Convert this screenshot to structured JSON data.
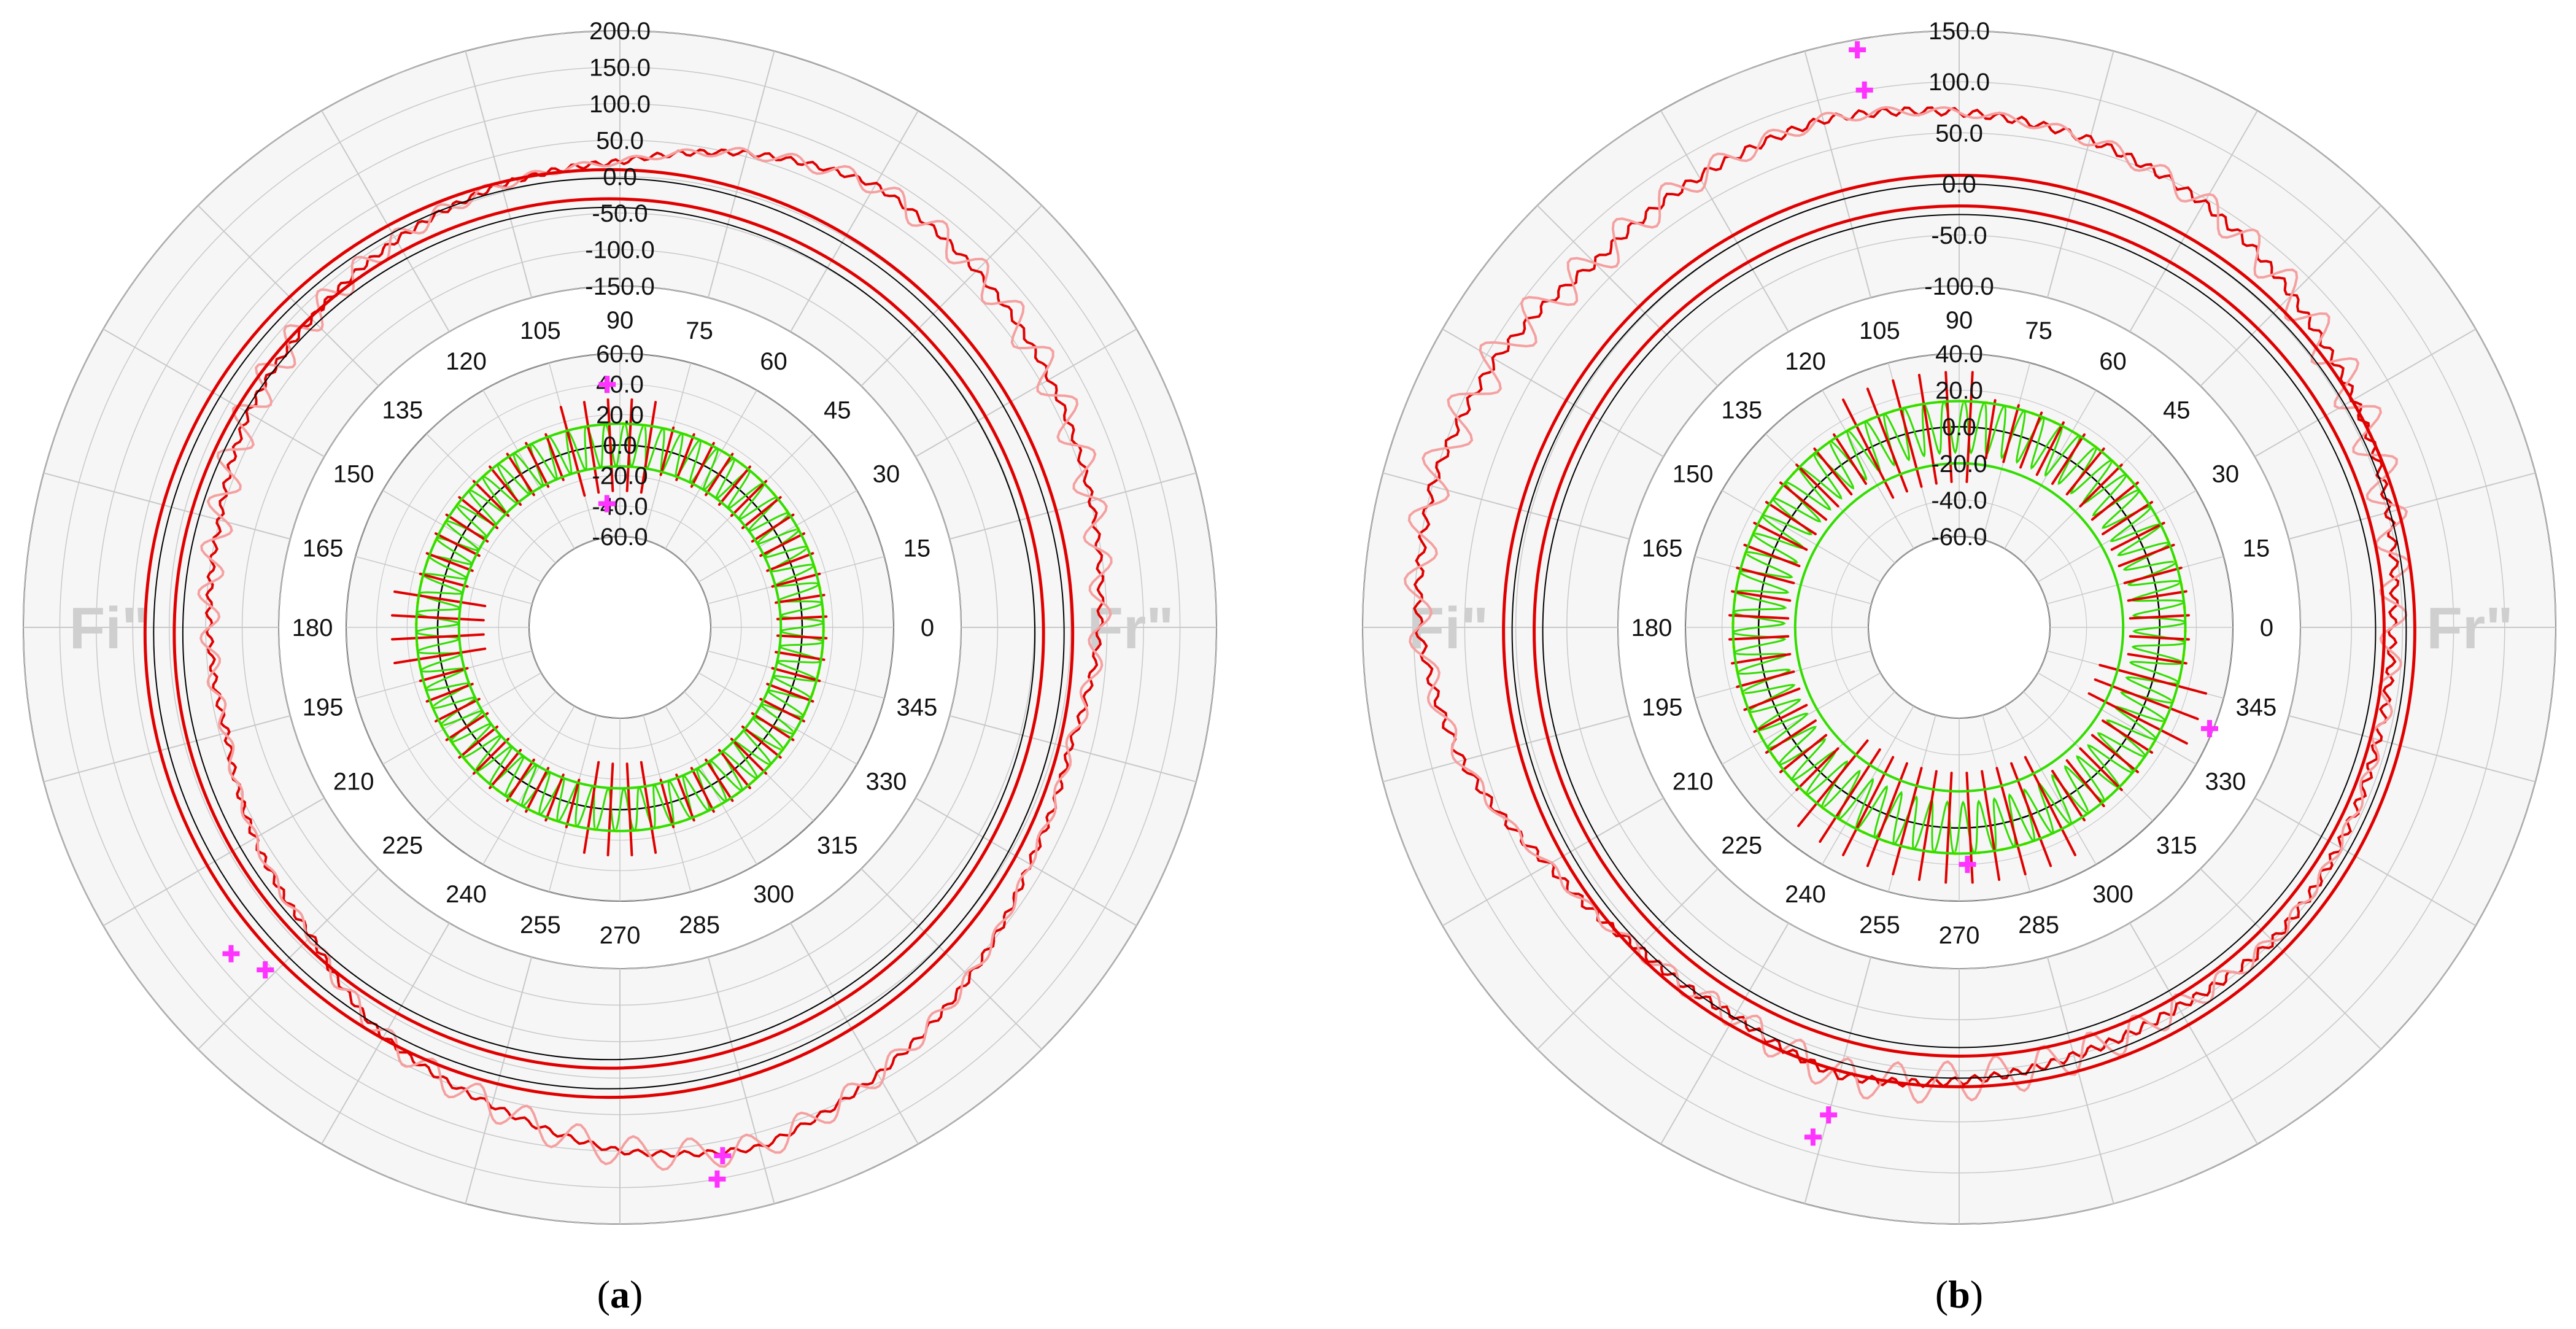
{
  "colors": {
    "grid": "#c8c8c8",
    "black": "#000000",
    "red": "#e00000",
    "pink": "#f5a0a0",
    "green": "#33dd00",
    "yellow": "#ffff00",
    "magenta": "#ff33ff",
    "side_label": "#cfcfcf",
    "outer_fill": "#f6f6f6"
  },
  "chart_data": [
    {
      "type": "polar-line",
      "caption_open": "(",
      "caption_letter": "a",
      "caption_close": ")",
      "side_left": "Fi\"",
      "side_right": "Fr\"",
      "angle_labels": [
        "0",
        "15",
        "30",
        "45",
        "60",
        "75",
        "90",
        "105",
        "120",
        "135",
        "150",
        "165",
        "180",
        "195",
        "210",
        "225",
        "240",
        "255",
        "270",
        "285",
        "300",
        "315",
        "330",
        "345"
      ],
      "outer_radial_labels": [
        "200.0",
        "150.0",
        "100.0",
        "50.0",
        "0.0",
        "-50.0",
        "-100.0",
        "-150.0"
      ],
      "outer_range": [
        -150,
        200
      ],
      "inner_radial_labels": [
        "60.0",
        "40.0",
        "20.0",
        "0.0",
        "-20.0",
        "-40.0",
        "-60.0"
      ],
      "inner_range": [
        -60,
        60
      ],
      "series": [
        {
          "name": "outer deviation trace",
          "ring": "outer",
          "style": "red",
          "points": [
            [
              0,
              40
            ],
            [
              20,
              55
            ],
            [
              40,
              70
            ],
            [
              60,
              82
            ],
            [
              75,
              55
            ],
            [
              90,
              20
            ],
            [
              105,
              10
            ],
            [
              120,
              -5
            ],
            [
              135,
              -20
            ],
            [
              150,
              -30
            ],
            [
              165,
              -50
            ],
            [
              180,
              -55
            ],
            [
              195,
              -60
            ],
            [
              210,
              -40
            ],
            [
              225,
              -20
            ],
            [
              240,
              30
            ],
            [
              255,
              60
            ],
            [
              270,
              100
            ],
            [
              285,
              120
            ],
            [
              300,
              90
            ],
            [
              315,
              60
            ],
            [
              330,
              30
            ],
            [
              345,
              20
            ]
          ]
        },
        {
          "name": "outer filtered trace",
          "ring": "outer",
          "style": "pink",
          "amplitude": 22,
          "waves": 58
        },
        {
          "name": "outer tolerance band upper",
          "ring": "outer",
          "style": "redband",
          "value": 18
        },
        {
          "name": "outer tolerance band lower",
          "ring": "outer",
          "style": "redband",
          "value": -22
        },
        {
          "name": "inner pitch deviation",
          "ring": "inner",
          "style": "green",
          "amplitude": 14,
          "waves": 66
        },
        {
          "name": "inner tolerance upper",
          "ring": "inner",
          "style": "greenband",
          "value": 14
        },
        {
          "name": "inner tolerance lower",
          "ring": "inner",
          "style": "greenband",
          "value": -14
        }
      ],
      "markers": [
        {
          "angle": 93,
          "ring": "inner",
          "value": 40
        },
        {
          "angle": 96,
          "ring": "inner",
          "value": -38
        },
        {
          "angle": 220,
          "ring": "outer",
          "value": 78
        },
        {
          "angle": 224,
          "ring": "outer",
          "value": 58
        },
        {
          "angle": 281,
          "ring": "outer",
          "value": 120
        },
        {
          "angle": 280,
          "ring": "outer",
          "value": 150
        }
      ]
    },
    {
      "type": "polar-line",
      "caption_open": "(",
      "caption_letter": "b",
      "caption_close": ")",
      "side_left": "Fi\"",
      "side_right": "Fr\"",
      "angle_labels": [
        "0",
        "15",
        "30",
        "45",
        "60",
        "75",
        "90",
        "105",
        "120",
        "135",
        "150",
        "165",
        "180",
        "195",
        "210",
        "225",
        "240",
        "255",
        "270",
        "285",
        "300",
        "315",
        "330",
        "345"
      ],
      "outer_radial_labels": [
        "150.0",
        "100.0",
        "50.0",
        "0.0",
        "-50.0",
        "-100.0"
      ],
      "outer_range": [
        -100,
        150
      ],
      "inner_radial_labels": [
        "40.0",
        "20.0",
        "0.0",
        "-20.0",
        "-40.0",
        "-60.0"
      ],
      "inner_range": [
        -60,
        40
      ],
      "series": [
        {
          "name": "outer deviation trace",
          "ring": "outer",
          "style": "red",
          "points": [
            [
              0,
              -10
            ],
            [
              20,
              5
            ],
            [
              40,
              20
            ],
            [
              60,
              45
            ],
            [
              75,
              60
            ],
            [
              90,
              70
            ],
            [
              105,
              80
            ],
            [
              120,
              75
            ],
            [
              135,
              70
            ],
            [
              150,
              90
            ],
            [
              165,
              100
            ],
            [
              180,
              95
            ],
            [
              195,
              70
            ],
            [
              210,
              30
            ],
            [
              225,
              10
            ],
            [
              240,
              5
            ],
            [
              255,
              20
            ],
            [
              270,
              10
            ],
            [
              285,
              0
            ],
            [
              300,
              -5
            ],
            [
              315,
              0
            ],
            [
              330,
              -5
            ],
            [
              345,
              -10
            ]
          ]
        },
        {
          "name": "outer filtered trace",
          "ring": "outer",
          "style": "pink",
          "amplitude": 20,
          "waves": 56
        },
        {
          "name": "outer tolerance band upper",
          "ring": "outer",
          "style": "redband",
          "value": 12
        },
        {
          "name": "outer tolerance band lower",
          "ring": "outer",
          "style": "redband",
          "value": -18
        },
        {
          "name": "inner pitch deviation",
          "ring": "inner",
          "style": "green",
          "amplitude": 14,
          "waves": 70
        },
        {
          "name": "inner tolerance upper",
          "ring": "inner",
          "style": "greenband",
          "value": 14
        },
        {
          "name": "inner tolerance lower",
          "ring": "inner",
          "style": "greenband",
          "value": -20
        }
      ],
      "markers": [
        {
          "angle": 100,
          "ring": "outer",
          "value": 140
        },
        {
          "angle": 100,
          "ring": "outer",
          "value": 100
        },
        {
          "angle": 254,
          "ring": "outer",
          "value": 85
        },
        {
          "angle": 255,
          "ring": "outer",
          "value": 60
        },
        {
          "angle": 272,
          "ring": "inner",
          "value": 20
        },
        {
          "angle": 338,
          "ring": "inner",
          "value": 38
        }
      ]
    }
  ]
}
